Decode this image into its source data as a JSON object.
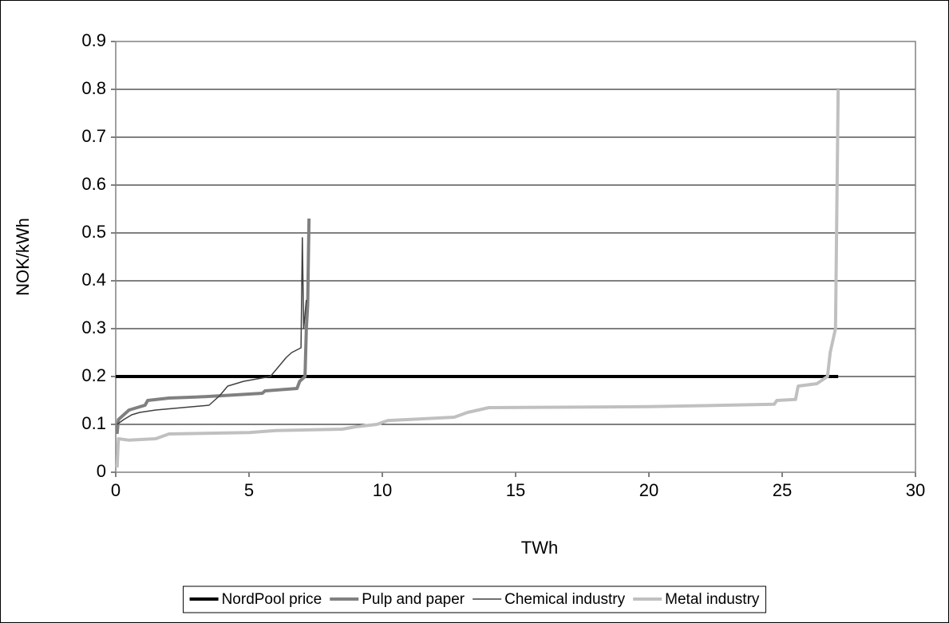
{
  "chart_data": {
    "type": "line",
    "x_label": "TWh",
    "y_label": "NOK/kWh",
    "xlim": [
      0,
      30
    ],
    "xticks": [
      0,
      5,
      10,
      15,
      20,
      25,
      30
    ],
    "ylim": [
      0,
      0.9
    ],
    "yticks": [
      0,
      0.1,
      0.2,
      0.3,
      0.4,
      0.5,
      0.6,
      0.7,
      0.8,
      0.9
    ],
    "grid": true,
    "legend": "bottom",
    "series": [
      {
        "name": "NordPool price",
        "color": "#000000",
        "line_width": 4,
        "x": [
          0,
          27.1
        ],
        "values": [
          0.2,
          0.2
        ]
      },
      {
        "name": "Pulp and paper",
        "color": "#808080",
        "line_width": 4,
        "x": [
          0.05,
          0.1,
          0.3,
          0.5,
          0.8,
          1.1,
          1.2,
          2,
          3,
          4,
          5.5,
          5.6,
          6.8,
          6.9,
          7.1,
          7.15,
          7.2,
          7.25
        ],
        "values": [
          0.08,
          0.11,
          0.12,
          0.13,
          0.135,
          0.14,
          0.15,
          0.155,
          0.157,
          0.16,
          0.165,
          0.17,
          0.175,
          0.19,
          0.2,
          0.3,
          0.35,
          0.53
        ]
      },
      {
        "name": "Chemical industry",
        "color": "#404040",
        "line_width": 1.5,
        "x": [
          0.05,
          0.3,
          0.6,
          0.9,
          1.5,
          2.5,
          3.5,
          3.9,
          4.2,
          4.8,
          5.8,
          6.1,
          6.4,
          6.6,
          6.95,
          7.0,
          7.05,
          7.1,
          7.15
        ],
        "values": [
          0.1,
          0.11,
          0.12,
          0.125,
          0.13,
          0.135,
          0.14,
          0.16,
          0.18,
          0.19,
          0.2,
          0.22,
          0.24,
          0.25,
          0.26,
          0.49,
          0.3,
          0.33,
          0.36
        ]
      },
      {
        "name": "Metal industry",
        "color": "#c0c0c0",
        "line_width": 4,
        "x": [
          0.05,
          0.1,
          0.5,
          1.5,
          2,
          5,
          6,
          8.5,
          9,
          9.8,
          10.2,
          12.7,
          13.2,
          14,
          20,
          24.7,
          24.8,
          25.5,
          25.6,
          26.3,
          26.7,
          26.8,
          27,
          27.1
        ],
        "values": [
          0.01,
          0.07,
          0.067,
          0.07,
          0.08,
          0.083,
          0.087,
          0.09,
          0.095,
          0.1,
          0.108,
          0.115,
          0.125,
          0.135,
          0.137,
          0.142,
          0.15,
          0.152,
          0.18,
          0.185,
          0.2,
          0.25,
          0.3,
          0.8
        ]
      }
    ]
  }
}
